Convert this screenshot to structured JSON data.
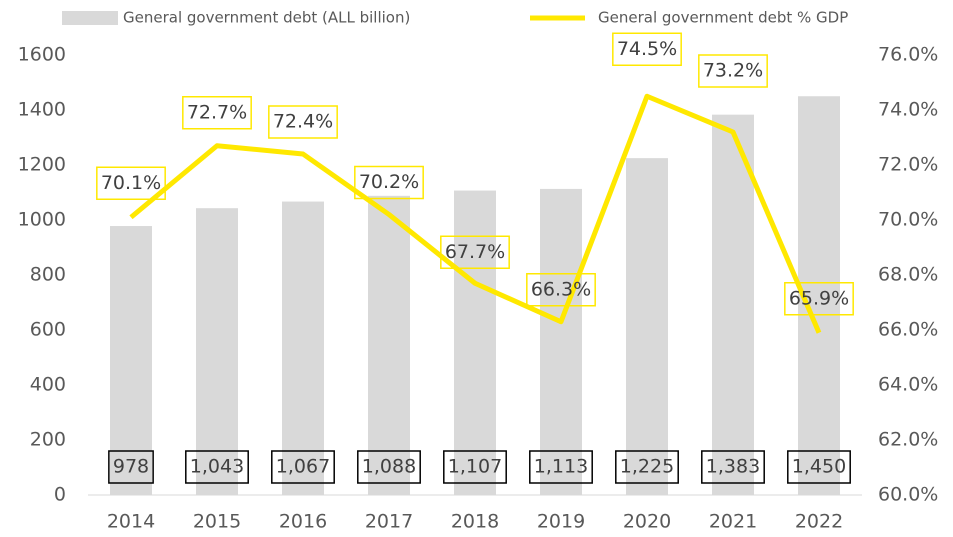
{
  "chart_data": {
    "type": "bar+line",
    "categories": [
      "2014",
      "2015",
      "2016",
      "2017",
      "2018",
      "2019",
      "2020",
      "2021",
      "2022"
    ],
    "series": [
      {
        "name": "General government debt (ALL billion)",
        "type": "bar",
        "color": "#d9d9d9",
        "values": [
          978,
          1043,
          1067,
          1088,
          1107,
          1113,
          1225,
          1383,
          1450
        ],
        "value_labels": [
          "978",
          "1,043",
          "1,067",
          "1,088",
          "1,107",
          "1,113",
          "1,225",
          "1,383",
          "1,450"
        ]
      },
      {
        "name": "General government debt % GDP",
        "type": "line",
        "axis": "y2",
        "color": "#ffe800",
        "values": [
          70.1,
          72.7,
          72.4,
          70.2,
          67.7,
          66.3,
          74.5,
          73.2,
          65.9
        ],
        "value_labels": [
          "70.1%",
          "72.7%",
          "72.4%",
          "70.2%",
          "67.7%",
          "66.3%",
          "74.5%",
          "73.2%",
          "65.9%"
        ]
      }
    ],
    "ylim": [
      0,
      1600
    ],
    "yticks": [
      0,
      200,
      400,
      600,
      800,
      1000,
      1200,
      1400,
      1600
    ],
    "y2lim": [
      60,
      76
    ],
    "y2ticks": [
      {
        "value": 60,
        "label": "60.0%"
      },
      {
        "value": 62,
        "label": "62.0%"
      },
      {
        "value": 64,
        "label": "64.0%"
      },
      {
        "value": 66,
        "label": "66.0%"
      },
      {
        "value": 68,
        "label": "68.0%"
      },
      {
        "value": 70,
        "label": "70.0%"
      },
      {
        "value": 72,
        "label": "72.0%"
      },
      {
        "value": 74,
        "label": "74.0%"
      },
      {
        "value": 76,
        "label": "76.0%"
      }
    ],
    "grid": false,
    "legend": "top"
  }
}
